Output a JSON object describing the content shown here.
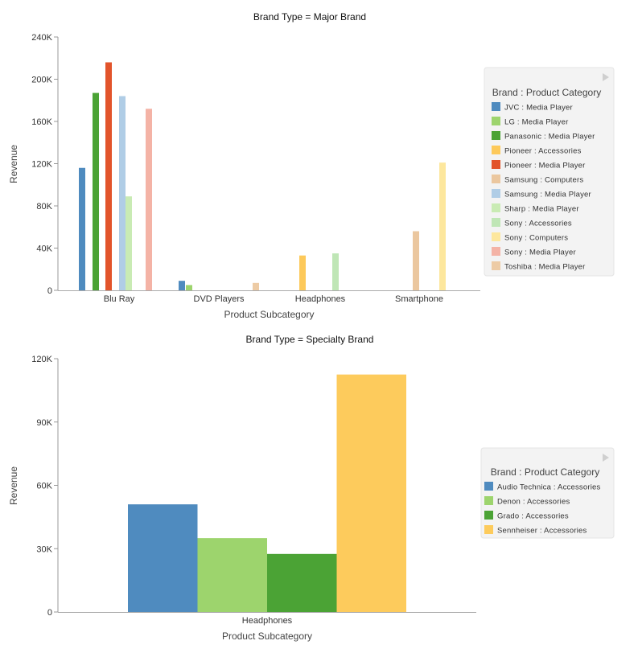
{
  "chart_data": [
    {
      "type": "bar",
      "title": "Brand Type = Major Brand",
      "xlabel": "Product Subcategory",
      "ylabel": "Revenue",
      "ylim": [
        0,
        240000
      ],
      "yticks": [
        "0",
        "40K",
        "80K",
        "120K",
        "160K",
        "200K",
        "240K"
      ],
      "categories": [
        "Blu Ray",
        "DVD Players",
        "Headphones",
        "Smartphone"
      ],
      "legend_title": "Brand : Product Category",
      "legend_position": "right",
      "series": [
        {
          "name": "JVC : Media Player",
          "color": "#4f8bbf",
          "values": [
            116000,
            9000,
            null,
            null
          ]
        },
        {
          "name": "LG : Media Player",
          "color": "#9dd46d",
          "values": [
            null,
            5000,
            null,
            null
          ]
        },
        {
          "name": "Panasonic : Media Player",
          "color": "#4ba335",
          "values": [
            187000,
            null,
            null,
            null
          ]
        },
        {
          "name": "Pioneer : Accessories",
          "color": "#fdc95a",
          "values": [
            null,
            null,
            33000,
            null
          ]
        },
        {
          "name": "Pioneer : Media Player",
          "color": "#e2542b",
          "values": [
            216000,
            null,
            null,
            null
          ]
        },
        {
          "name": "Samsung : Computers",
          "color": "#ebc79f",
          "values": [
            null,
            null,
            null,
            56000
          ]
        },
        {
          "name": "Samsung : Media Player",
          "color": "#b0cde6",
          "values": [
            184000,
            null,
            null,
            null
          ]
        },
        {
          "name": "Sharp : Media Player",
          "color": "#c9ebb4",
          "values": [
            89000,
            null,
            null,
            null
          ]
        },
        {
          "name": "Sony : Accessories",
          "color": "#bfe6b6",
          "values": [
            null,
            null,
            35000,
            null
          ]
        },
        {
          "name": "Sony : Computers",
          "color": "#fde79d",
          "values": [
            null,
            null,
            null,
            121000
          ]
        },
        {
          "name": "Sony : Media Player",
          "color": "#f4b3a6",
          "values": [
            172000,
            null,
            null,
            null
          ]
        },
        {
          "name": "Toshiba : Media Player",
          "color": "#edcba5",
          "values": [
            null,
            7000,
            null,
            null
          ]
        }
      ]
    },
    {
      "type": "bar",
      "title": "Brand Type = Specialty Brand",
      "xlabel": "Product Subcategory",
      "ylabel": "Revenue",
      "ylim": [
        0,
        120000
      ],
      "yticks": [
        "0",
        "30K",
        "60K",
        "90K",
        "120K"
      ],
      "categories": [
        "Headphones"
      ],
      "legend_title": "Brand : Product Category",
      "legend_position": "right",
      "series": [
        {
          "name": "Audio Technica : Accessories",
          "color": "#4f8bbf",
          "values": [
            51000
          ]
        },
        {
          "name": "Denon : Accessories",
          "color": "#9dd46d",
          "values": [
            35000
          ]
        },
        {
          "name": "Grado : Accessories",
          "color": "#4ba335",
          "values": [
            27500
          ]
        },
        {
          "name": "Sennheiser : Accessories",
          "color": "#fdcb5c",
          "values": [
            112500
          ]
        }
      ]
    }
  ]
}
